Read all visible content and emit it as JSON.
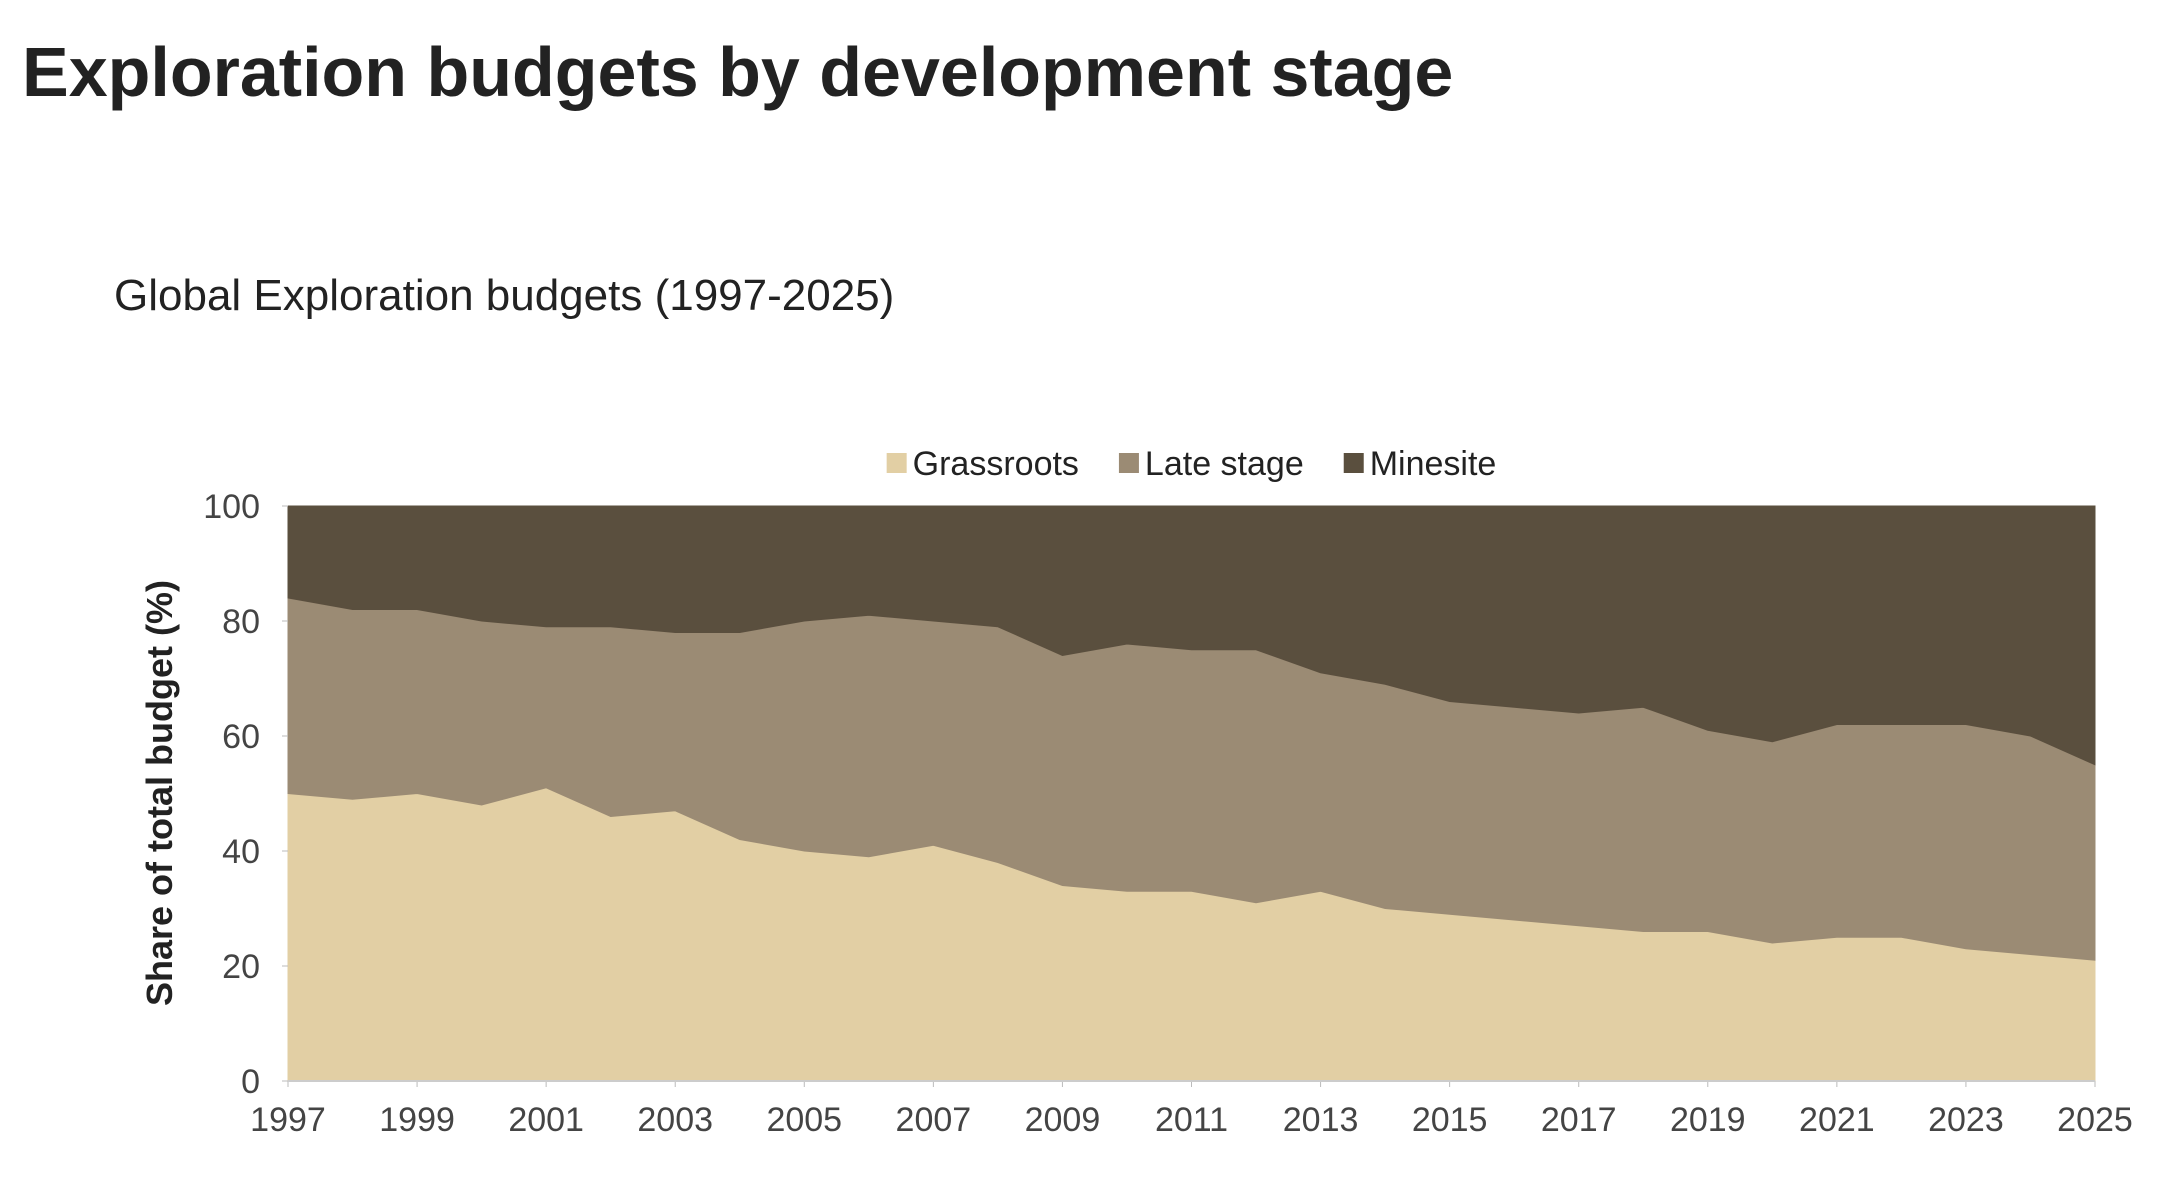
{
  "chart_data": {
    "type": "area",
    "stacked": true,
    "page_title": "Exploration budgets by development stage",
    "title": "Global Exploration budgets (1997-2025)",
    "y_label": "Share of total budget (%)",
    "legend": "top",
    "x": [
      1997,
      1998,
      1999,
      2000,
      2001,
      2002,
      2003,
      2004,
      2005,
      2006,
      2007,
      2008,
      2009,
      2010,
      2011,
      2012,
      2013,
      2014,
      2015,
      2016,
      2017,
      2018,
      2019,
      2020,
      2021,
      2022,
      2023,
      2024,
      2025
    ],
    "xlim": [
      1997,
      2025
    ],
    "xticks": [
      1997,
      1999,
      2001,
      2003,
      2005,
      2007,
      2009,
      2011,
      2013,
      2015,
      2017,
      2019,
      2021,
      2023,
      2025
    ],
    "ylim": [
      0,
      100
    ],
    "yticks": [
      0,
      20,
      40,
      60,
      80,
      100
    ],
    "series": [
      {
        "name": "Grassroots",
        "color": "#e2cfa4",
        "values": [
          50,
          49,
          50,
          48,
          51,
          46,
          47,
          42,
          40,
          39,
          41,
          38,
          34,
          33,
          33,
          31,
          33,
          30,
          29,
          28,
          27,
          26,
          26,
          24,
          25,
          25,
          23,
          22,
          21
        ]
      },
      {
        "name": "Late stage",
        "color": "#9b8b74",
        "values": [
          34,
          33,
          32,
          32,
          28,
          33,
          31,
          36,
          40,
          42,
          39,
          41,
          40,
          43,
          42,
          44,
          38,
          39,
          37,
          37,
          37,
          39,
          35,
          35,
          37,
          37,
          39,
          38,
          34
        ]
      },
      {
        "name": "Minesite",
        "color": "#5a4f3e",
        "values": [
          16,
          18,
          18,
          20,
          21,
          21,
          22,
          22,
          20,
          19,
          20,
          21,
          26,
          24,
          25,
          25,
          29,
          31,
          34,
          35,
          36,
          35,
          39,
          41,
          38,
          38,
          38,
          40,
          45
        ]
      }
    ]
  }
}
